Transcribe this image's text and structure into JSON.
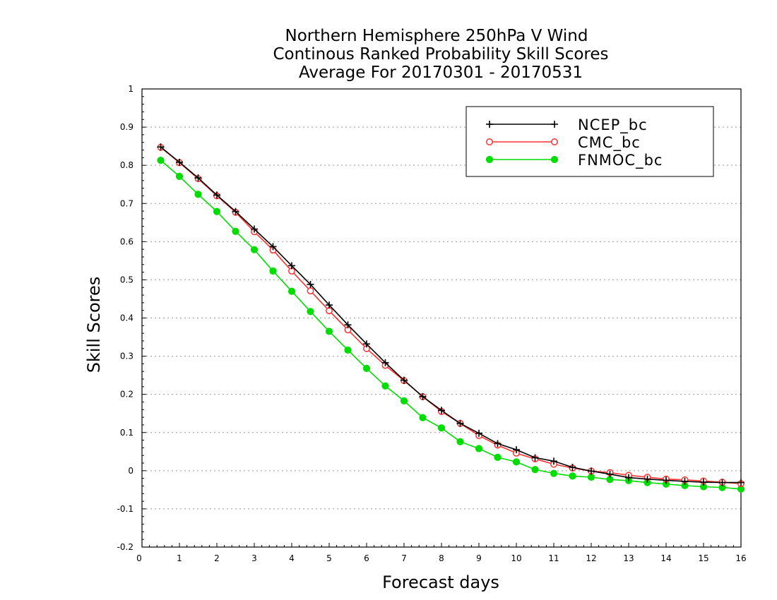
{
  "chart_data": {
    "type": "line",
    "title": [
      "Northern Hemisphere 250hPa V Wind",
      "Continous Ranked Probability Skill Scores",
      "Average For 20170301 - 20170531"
    ],
    "xlabel": "Forecast days",
    "ylabel": "Skill Scores",
    "xlim": [
      0,
      16
    ],
    "ylim": [
      -0.2,
      1
    ],
    "xticks": [
      0,
      1,
      2,
      3,
      4,
      5,
      6,
      7,
      8,
      9,
      10,
      11,
      12,
      13,
      14,
      15,
      16
    ],
    "yticks": [
      -0.2,
      -0.1,
      0,
      0.1,
      0.2,
      0.3,
      0.4,
      0.5,
      0.6,
      0.7,
      0.8,
      0.9,
      1
    ],
    "ytick_labels": [
      "-0.2",
      "-0.1",
      "0",
      "0.1",
      "0.2",
      "0.3",
      "0.4",
      "0.5",
      "0.6",
      "0.7",
      "0.8",
      "0.9",
      "1"
    ],
    "grid": "horizontal dotted",
    "legend_position": "top-right",
    "x": [
      0.5,
      1,
      1.5,
      2,
      2.5,
      3,
      3.5,
      4,
      4.5,
      5,
      5.5,
      6,
      6.5,
      7,
      7.5,
      8,
      8.5,
      9,
      9.5,
      10,
      10.5,
      11,
      11.5,
      12,
      12.5,
      13,
      13.5,
      14,
      14.5,
      15,
      15.5,
      16
    ],
    "series": [
      {
        "name": "NCEP_bc",
        "color": "#000000",
        "marker": "plus",
        "values": [
          0.848,
          0.808,
          0.767,
          0.722,
          0.679,
          0.633,
          0.587,
          0.537,
          0.488,
          0.434,
          0.382,
          0.332,
          0.283,
          0.237,
          0.194,
          0.158,
          0.124,
          0.098,
          0.071,
          0.055,
          0.034,
          0.025,
          0.009,
          -0.001,
          -0.009,
          -0.018,
          -0.022,
          -0.025,
          -0.028,
          -0.03,
          -0.031,
          -0.031
        ]
      },
      {
        "name": "CMC_bc",
        "color": "#ff3030",
        "marker": "open-circle",
        "values": [
          0.847,
          0.807,
          0.765,
          0.72,
          0.677,
          0.626,
          0.578,
          0.523,
          0.471,
          0.419,
          0.369,
          0.32,
          0.276,
          0.236,
          0.194,
          0.155,
          0.124,
          0.092,
          0.067,
          0.046,
          0.031,
          0.017,
          0.007,
          -0.001,
          -0.005,
          -0.012,
          -0.017,
          -0.022,
          -0.024,
          -0.027,
          -0.03,
          -0.034
        ]
      },
      {
        "name": "FNMOC_bc",
        "color": "#00dd00",
        "marker": "filled-circle",
        "values": [
          0.813,
          0.771,
          0.724,
          0.679,
          0.627,
          0.579,
          0.523,
          0.47,
          0.417,
          0.365,
          0.316,
          0.268,
          0.222,
          0.183,
          0.139,
          0.112,
          0.076,
          0.058,
          0.035,
          0.023,
          0.003,
          -0.007,
          -0.014,
          -0.017,
          -0.023,
          -0.026,
          -0.031,
          -0.035,
          -0.039,
          -0.042,
          -0.044,
          -0.048
        ]
      }
    ]
  }
}
